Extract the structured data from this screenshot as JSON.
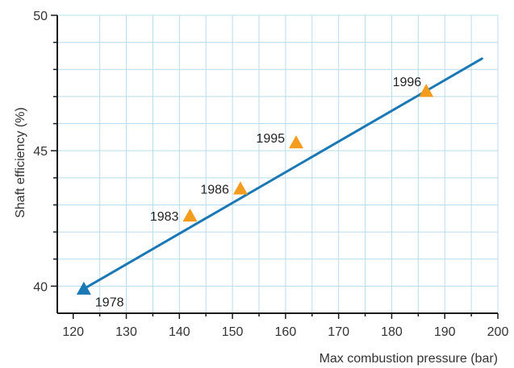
{
  "chart_data": {
    "type": "scatter",
    "title": "",
    "xlabel": "Max combustion pressure (bar)",
    "ylabel": "Shaft efficiency (%)",
    "xlim": [
      117,
      200
    ],
    "ylim": [
      39,
      50
    ],
    "xticks": [
      120,
      130,
      140,
      150,
      160,
      170,
      180,
      190,
      200
    ],
    "yticks": [
      40,
      45,
      50
    ],
    "grid": true,
    "points": [
      {
        "label": "1978",
        "x": 122,
        "y": 39.9,
        "color": "#1a78b4"
      },
      {
        "label": "1983",
        "x": 142,
        "y": 42.6,
        "color": "#f39c1e"
      },
      {
        "label": "1986",
        "x": 151.5,
        "y": 43.6,
        "color": "#f39c1e"
      },
      {
        "label": "1995",
        "x": 162,
        "y": 45.3,
        "color": "#f39c1e"
      },
      {
        "label": "1996",
        "x": 186.5,
        "y": 47.2,
        "color": "#f39c1e"
      }
    ],
    "trendline": {
      "x": [
        122,
        197
      ],
      "y": [
        39.9,
        48.4
      ],
      "color": "#1a78b4"
    },
    "colors": {
      "grid": "#b9dcec",
      "axis": "#1a1a1a"
    }
  }
}
